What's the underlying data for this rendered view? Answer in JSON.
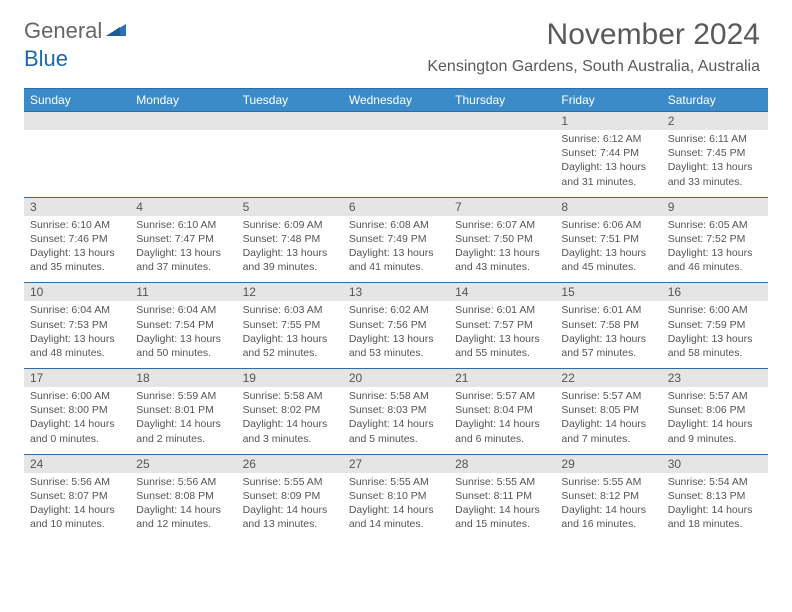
{
  "logo": {
    "general": "General",
    "blue": "Blue"
  },
  "title": "November 2024",
  "location": "Kensington Gardens, South Australia, Australia",
  "colors": {
    "header_bg": "#3b8bc8",
    "border": "#2d6ca8",
    "daynum_band": "#e5e5e5",
    "text": "#555555",
    "logo_gray": "#666666",
    "logo_blue": "#2068a9"
  },
  "dow": [
    "Sunday",
    "Monday",
    "Tuesday",
    "Wednesday",
    "Thursday",
    "Friday",
    "Saturday"
  ],
  "weeks": [
    [
      null,
      null,
      null,
      null,
      null,
      {
        "n": "1",
        "sr": "6:12 AM",
        "ss": "7:44 PM",
        "dh": "13",
        "dm": "31"
      },
      {
        "n": "2",
        "sr": "6:11 AM",
        "ss": "7:45 PM",
        "dh": "13",
        "dm": "33"
      }
    ],
    [
      {
        "n": "3",
        "sr": "6:10 AM",
        "ss": "7:46 PM",
        "dh": "13",
        "dm": "35"
      },
      {
        "n": "4",
        "sr": "6:10 AM",
        "ss": "7:47 PM",
        "dh": "13",
        "dm": "37"
      },
      {
        "n": "5",
        "sr": "6:09 AM",
        "ss": "7:48 PM",
        "dh": "13",
        "dm": "39"
      },
      {
        "n": "6",
        "sr": "6:08 AM",
        "ss": "7:49 PM",
        "dh": "13",
        "dm": "41"
      },
      {
        "n": "7",
        "sr": "6:07 AM",
        "ss": "7:50 PM",
        "dh": "13",
        "dm": "43"
      },
      {
        "n": "8",
        "sr": "6:06 AM",
        "ss": "7:51 PM",
        "dh": "13",
        "dm": "45"
      },
      {
        "n": "9",
        "sr": "6:05 AM",
        "ss": "7:52 PM",
        "dh": "13",
        "dm": "46"
      }
    ],
    [
      {
        "n": "10",
        "sr": "6:04 AM",
        "ss": "7:53 PM",
        "dh": "13",
        "dm": "48"
      },
      {
        "n": "11",
        "sr": "6:04 AM",
        "ss": "7:54 PM",
        "dh": "13",
        "dm": "50"
      },
      {
        "n": "12",
        "sr": "6:03 AM",
        "ss": "7:55 PM",
        "dh": "13",
        "dm": "52"
      },
      {
        "n": "13",
        "sr": "6:02 AM",
        "ss": "7:56 PM",
        "dh": "13",
        "dm": "53"
      },
      {
        "n": "14",
        "sr": "6:01 AM",
        "ss": "7:57 PM",
        "dh": "13",
        "dm": "55"
      },
      {
        "n": "15",
        "sr": "6:01 AM",
        "ss": "7:58 PM",
        "dh": "13",
        "dm": "57"
      },
      {
        "n": "16",
        "sr": "6:00 AM",
        "ss": "7:59 PM",
        "dh": "13",
        "dm": "58"
      }
    ],
    [
      {
        "n": "17",
        "sr": "6:00 AM",
        "ss": "8:00 PM",
        "dh": "14",
        "dm": "0"
      },
      {
        "n": "18",
        "sr": "5:59 AM",
        "ss": "8:01 PM",
        "dh": "14",
        "dm": "2"
      },
      {
        "n": "19",
        "sr": "5:58 AM",
        "ss": "8:02 PM",
        "dh": "14",
        "dm": "3"
      },
      {
        "n": "20",
        "sr": "5:58 AM",
        "ss": "8:03 PM",
        "dh": "14",
        "dm": "5"
      },
      {
        "n": "21",
        "sr": "5:57 AM",
        "ss": "8:04 PM",
        "dh": "14",
        "dm": "6"
      },
      {
        "n": "22",
        "sr": "5:57 AM",
        "ss": "8:05 PM",
        "dh": "14",
        "dm": "7"
      },
      {
        "n": "23",
        "sr": "5:57 AM",
        "ss": "8:06 PM",
        "dh": "14",
        "dm": "9"
      }
    ],
    [
      {
        "n": "24",
        "sr": "5:56 AM",
        "ss": "8:07 PM",
        "dh": "14",
        "dm": "10"
      },
      {
        "n": "25",
        "sr": "5:56 AM",
        "ss": "8:08 PM",
        "dh": "14",
        "dm": "12"
      },
      {
        "n": "26",
        "sr": "5:55 AM",
        "ss": "8:09 PM",
        "dh": "14",
        "dm": "13"
      },
      {
        "n": "27",
        "sr": "5:55 AM",
        "ss": "8:10 PM",
        "dh": "14",
        "dm": "14"
      },
      {
        "n": "28",
        "sr": "5:55 AM",
        "ss": "8:11 PM",
        "dh": "14",
        "dm": "15"
      },
      {
        "n": "29",
        "sr": "5:55 AM",
        "ss": "8:12 PM",
        "dh": "14",
        "dm": "16"
      },
      {
        "n": "30",
        "sr": "5:54 AM",
        "ss": "8:13 PM",
        "dh": "14",
        "dm": "18"
      }
    ]
  ]
}
